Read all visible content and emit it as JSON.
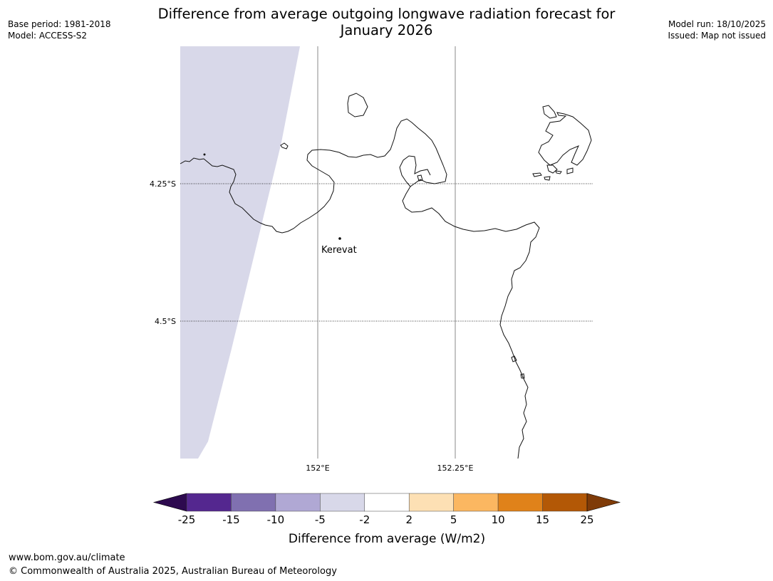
{
  "header": {
    "base_period": "Base period: 1981-2018",
    "model": "Model: ACCESS-S2",
    "model_run": "Model run: 18/10/2025",
    "issued": "Issued: Map not issued"
  },
  "title_line1": "Difference from average outgoing longwave radiation forecast for",
  "title_line2": "January 2026",
  "map": {
    "lat_labels": [
      "4.25°S",
      "4.5°S"
    ],
    "lon_labels": [
      "152°E",
      "152.25°E"
    ],
    "place_label": "Kerevat",
    "anomaly_fill_color": "#d8d8e9",
    "anomaly_category": "-5 to -2"
  },
  "colorbar": {
    "ticks": [
      "-25",
      "-15",
      "-10",
      "-5",
      "-2",
      "2",
      "5",
      "10",
      "15",
      "25"
    ],
    "colors": [
      "#2d0a4f",
      "#54278f",
      "#8070b0",
      "#b0a8d4",
      "#d8d8e9",
      "#ffffff",
      "#fde0b4",
      "#fbb761",
      "#e0821a",
      "#b35806",
      "#7f3b08"
    ],
    "label": "Difference from average (W/m2)"
  },
  "footer": {
    "url": "www.bom.gov.au/climate",
    "copyright": "© Commonwealth of Australia 2025, Australian Bureau of Meteorology"
  }
}
